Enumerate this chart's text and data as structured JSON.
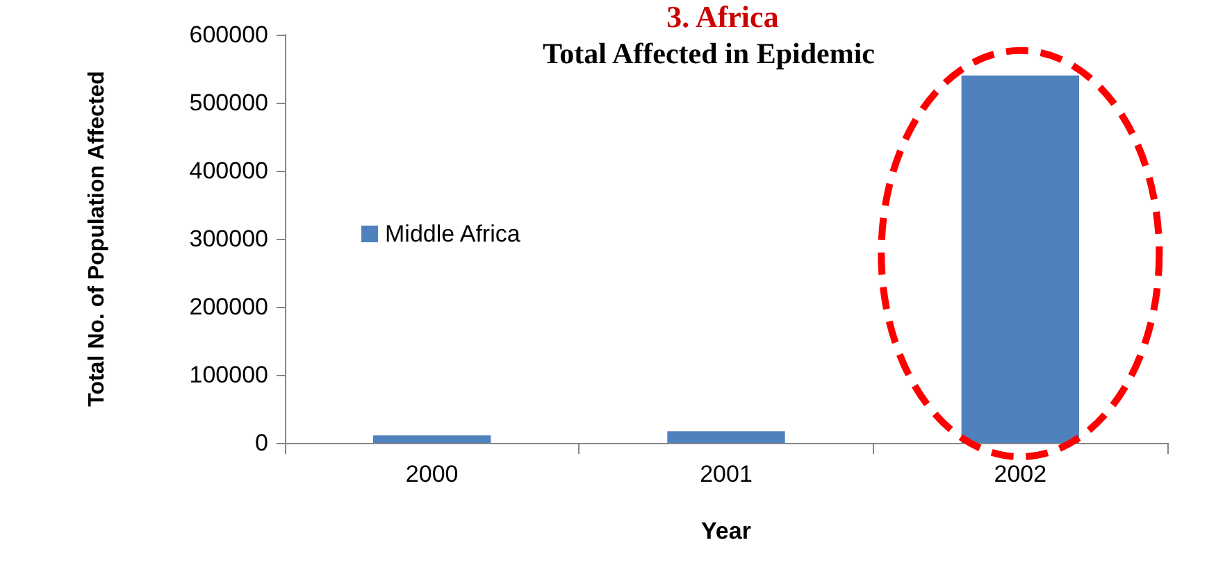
{
  "chart_data": {
    "type": "bar",
    "title": "3. Africa",
    "subtitle": "Total Affected in Epidemic",
    "xlabel": "Year",
    "ylabel": "Total No. of Population Affected",
    "categories": [
      "2000",
      "2001",
      "2002"
    ],
    "series": [
      {
        "name": "Middle Africa",
        "color": "#4f81bd",
        "values": [
          11000,
          17000,
          540000
        ]
      }
    ],
    "ylim": [
      0,
      600000
    ],
    "yticks": [
      0,
      100000,
      200000,
      300000,
      400000,
      500000,
      600000
    ],
    "grid": false,
    "legend": "left"
  }
}
